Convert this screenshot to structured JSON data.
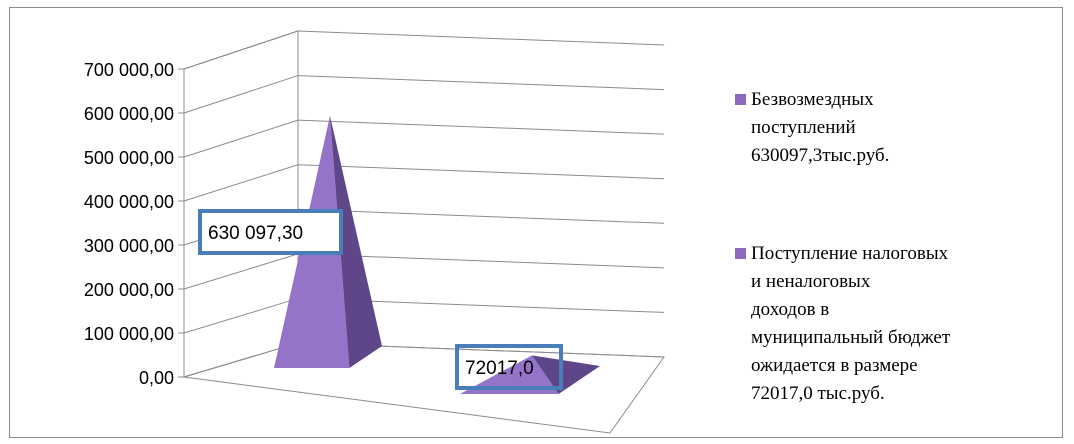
{
  "chart_data": {
    "type": "bar",
    "style": "3d-pyramid",
    "series": [
      {
        "name": "Безвозмездных\nпоступлений\n630097,3тыс.руб.",
        "value": 630097.3,
        "data_label": "630 097,30",
        "color": "#8b6bbf"
      },
      {
        "name": "Поступление налоговых\nи неналоговых\nдоходов в\nмуниципальный бюджет\nожидается в размере\n72017,0 тыс.руб.",
        "value": 72017.0,
        "data_label": "72017,0",
        "color": "#8b6bbf"
      }
    ],
    "ylim": [
      0,
      700000
    ],
    "y_ticks": [
      "0,00",
      "100 000,00",
      "200 000,00",
      "300 000,00",
      "400 000,00",
      "500 000,00",
      "600 000,00",
      "700 000,00"
    ],
    "grid": true,
    "legend_position": "right",
    "label_box_color": "#4a7ebb"
  }
}
